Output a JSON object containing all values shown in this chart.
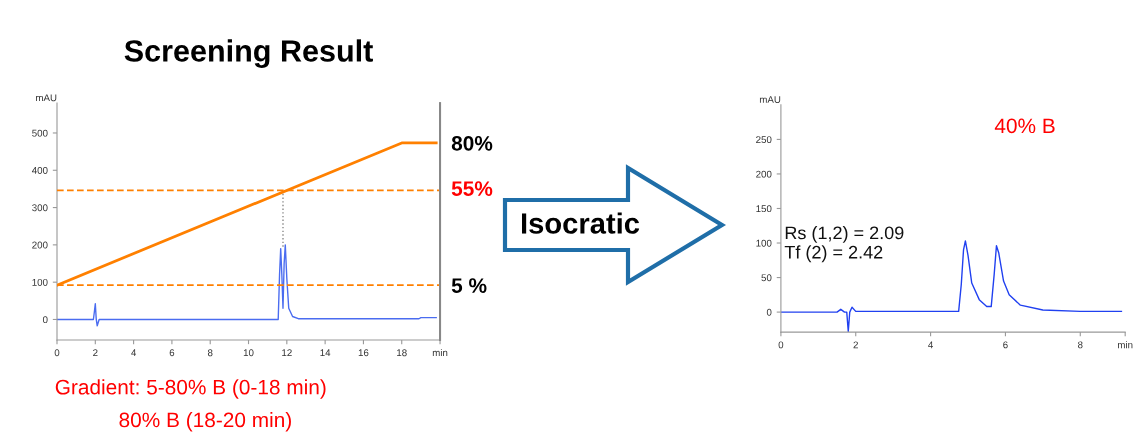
{
  "chart_data": [
    {
      "type": "line",
      "title": "Screening Result",
      "ylabel": "mAU",
      "xlim": [
        0,
        20
      ],
      "xticks": [
        0,
        2,
        4,
        6,
        8,
        10,
        12,
        14,
        16,
        18,
        {
          "value": 20,
          "label": "min"
        }
      ],
      "ylim": [
        -55,
        580
      ],
      "yticks": [
        0,
        100,
        200,
        300,
        400,
        500
      ],
      "y2lim": [
        -23.9,
        101
      ],
      "y2ticks": [
        {
          "value": 5,
          "label": "5 %"
        },
        {
          "value": 80,
          "label": "80%"
        }
      ],
      "series": [
        {
          "color": "#4a6cf0",
          "x": [
            0,
            1.9,
            1.95,
            2.0,
            2.05,
            2.1,
            2.2,
            11.55,
            11.62,
            11.68,
            11.74,
            11.8,
            11.86,
            11.92,
            12.0,
            12.1,
            12.3,
            12.6,
            18.9,
            19.0,
            19.8
          ],
          "values": [
            0,
            0,
            20,
            42,
            0,
            -17,
            0,
            0,
            120,
            190,
            120,
            30,
            150,
            200,
            110,
            30,
            8,
            2,
            2,
            5,
            5
          ]
        },
        {
          "color": "#ff8000",
          "axis": "y2",
          "x": [
            0,
            18,
            19.8
          ],
          "values": [
            5,
            80,
            80
          ]
        },
        {
          "color": "#888888",
          "line_style": "dotted",
          "x": [
            11.8,
            11.8
          ],
          "values": [
            195,
            340
          ]
        }
      ],
      "ref_lines": [
        {
          "axis": "y2",
          "value": 5,
          "color": "#ff8000",
          "line_style": "dashed"
        },
        {
          "axis": "y2",
          "value": 55,
          "label": "55%",
          "color": "#ff8000",
          "line_style": "dashed"
        }
      ],
      "annotations": [
        "Gradient: 5-80% B (0-18 min)",
        "80% B (18-20 min)"
      ]
    },
    {
      "type": "other",
      "annotations": [
        "Isocratic"
      ]
    },
    {
      "type": "line",
      "ylabel": "mAU",
      "xlim": [
        0,
        9.2
      ],
      "xticks": [
        0,
        2,
        4,
        6,
        8,
        {
          "value": 9.2,
          "label": "min"
        }
      ],
      "ylim": [
        -29,
        300
      ],
      "yticks": [
        0,
        50,
        100,
        150,
        200,
        250
      ],
      "series": [
        {
          "color": "#2040f0",
          "x": [
            0,
            1.5,
            1.6,
            1.7,
            1.76,
            1.8,
            1.84,
            1.9,
            2.0,
            4.75,
            4.82,
            4.88,
            4.93,
            5.0,
            5.1,
            5.3,
            5.5,
            5.62,
            5.7,
            5.76,
            5.82,
            5.95,
            6.1,
            6.4,
            7.0,
            8.0,
            9.1
          ],
          "values": [
            0,
            0,
            4,
            0,
            0,
            -28,
            0,
            7,
            1,
            1,
            40,
            90,
            103,
            82,
            42,
            18,
            8,
            8,
            55,
            96,
            86,
            45,
            25,
            10,
            3,
            1,
            1
          ]
        }
      ],
      "annotations": [
        "40% B",
        "Rs (1,2) = 2.09",
        "Tf (2) = 2.42"
      ]
    }
  ]
}
